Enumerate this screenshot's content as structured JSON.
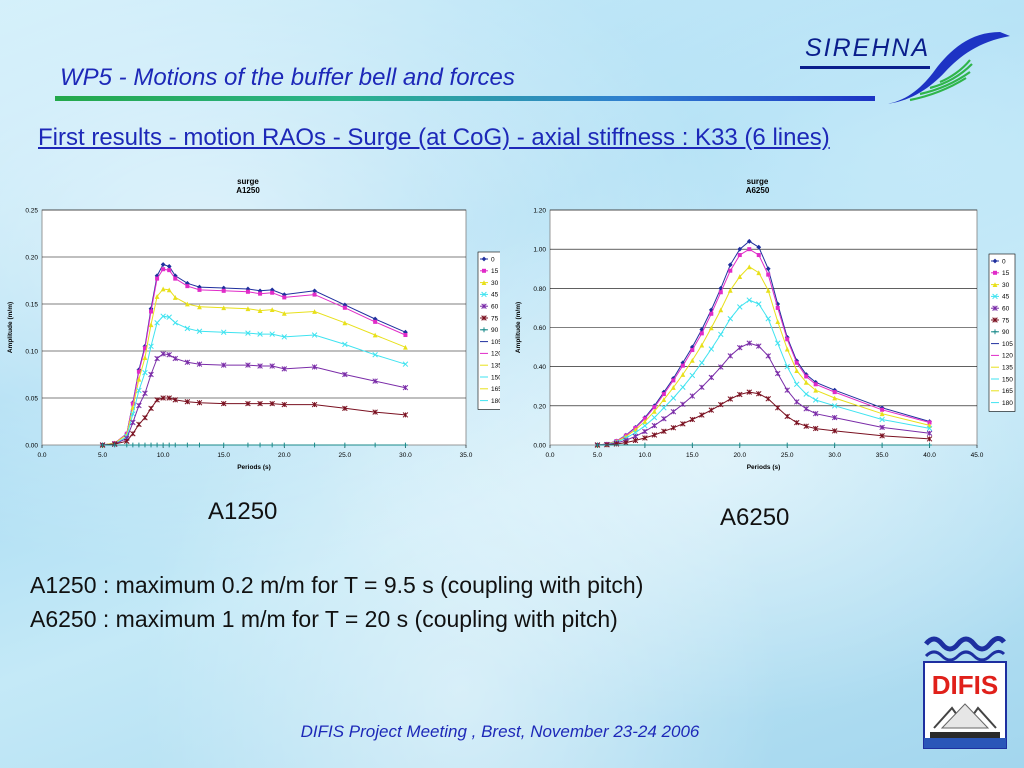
{
  "slide": {
    "title": "WP5 - Motions of the buffer bell and forces",
    "subtitle": "First results - motion RAOs - Surge (at CoG) - axial stiffness : K33 (6 lines)",
    "logo_text": "SIREHNA",
    "label_left": "A1250",
    "label_right": "A6250",
    "line1": "A1250 : maximum 0.2 m/m for T = 9.5 s (coupling with pitch)",
    "line2": "A6250 : maximum 1 m/m for T = 20 s (coupling with pitch)",
    "footer": "DIFIS Project Meeting , Brest, November 23-24 2006",
    "difis_logo_text": "DIFIS"
  },
  "chart_data": [
    {
      "type": "line",
      "title": "surge",
      "subtitle": "A1250",
      "xlabel": "Periods (s)",
      "ylabel": "Amplitude (m/m)",
      "xlim": [
        0,
        35
      ],
      "ylim": [
        0,
        0.25
      ],
      "xticks": [
        "0.0",
        "5.0",
        "10.0",
        "15.0",
        "20.0",
        "25.0",
        "30.0",
        "35.0"
      ],
      "yticks": [
        "0.00",
        "0.05",
        "0.10",
        "0.15",
        "0.20",
        "0.25"
      ],
      "grid": true,
      "legend_position": "right",
      "series": [
        {
          "name": "0",
          "color": "#1f2f9e",
          "x": [
            5,
            6,
            7,
            7.5,
            8,
            8.5,
            9,
            9.5,
            10,
            10.5,
            11,
            12,
            13,
            15,
            17,
            18,
            19,
            20,
            22.5,
            25,
            27.5,
            30
          ],
          "values": [
            0,
            0.002,
            0.012,
            0.045,
            0.08,
            0.105,
            0.145,
            0.18,
            0.192,
            0.19,
            0.18,
            0.172,
            0.168,
            0.167,
            0.166,
            0.164,
            0.165,
            0.16,
            0.164,
            0.149,
            0.134,
            0.12
          ]
        },
        {
          "name": "15",
          "color": "#e02bc8",
          "x": [
            5,
            6,
            7,
            7.5,
            8,
            8.5,
            9,
            9.5,
            10,
            10.5,
            11,
            12,
            13,
            15,
            17,
            18,
            19,
            20,
            22.5,
            25,
            27.5,
            30
          ],
          "values": [
            0,
            0.002,
            0.012,
            0.044,
            0.078,
            0.103,
            0.142,
            0.177,
            0.187,
            0.186,
            0.177,
            0.169,
            0.165,
            0.164,
            0.163,
            0.161,
            0.162,
            0.157,
            0.16,
            0.146,
            0.131,
            0.117
          ]
        },
        {
          "name": "30",
          "color": "#e8e01a",
          "x": [
            5,
            6,
            7,
            7.5,
            8,
            8.5,
            9,
            9.5,
            10,
            10.5,
            11,
            12,
            13,
            15,
            17,
            18,
            19,
            20,
            22.5,
            25,
            27.5,
            30
          ],
          "values": [
            0,
            0.002,
            0.011,
            0.04,
            0.07,
            0.093,
            0.128,
            0.158,
            0.166,
            0.165,
            0.157,
            0.15,
            0.147,
            0.146,
            0.145,
            0.143,
            0.144,
            0.14,
            0.142,
            0.13,
            0.117,
            0.104
          ]
        },
        {
          "name": "45",
          "color": "#3fe3f0",
          "x": [
            5,
            6,
            7,
            7.5,
            8,
            8.5,
            9,
            9.5,
            10,
            10.5,
            11,
            12,
            13,
            15,
            17,
            18,
            19,
            20,
            22.5,
            25,
            27.5,
            30
          ],
          "values": [
            0,
            0.001,
            0.009,
            0.033,
            0.058,
            0.077,
            0.105,
            0.13,
            0.137,
            0.136,
            0.13,
            0.124,
            0.121,
            0.12,
            0.119,
            0.118,
            0.118,
            0.115,
            0.117,
            0.107,
            0.096,
            0.086
          ]
        },
        {
          "name": "60",
          "color": "#7a2ca8",
          "x": [
            5,
            6,
            7,
            7.5,
            8,
            8.5,
            9,
            9.5,
            10,
            10.5,
            11,
            12,
            13,
            15,
            17,
            18,
            19,
            20,
            22.5,
            25,
            27.5,
            30
          ],
          "values": [
            0,
            0.001,
            0.007,
            0.024,
            0.042,
            0.055,
            0.075,
            0.092,
            0.097,
            0.096,
            0.092,
            0.088,
            0.086,
            0.085,
            0.085,
            0.084,
            0.084,
            0.081,
            0.083,
            0.075,
            0.068,
            0.061
          ]
        },
        {
          "name": "75",
          "color": "#7a1020",
          "x": [
            5,
            6,
            7,
            7.5,
            8,
            8.5,
            9,
            9.5,
            10,
            10.5,
            11,
            12,
            13,
            15,
            17,
            18,
            19,
            20,
            22.5,
            25,
            27.5,
            30
          ],
          "values": [
            0,
            0.001,
            0.004,
            0.012,
            0.022,
            0.029,
            0.039,
            0.048,
            0.05,
            0.05,
            0.048,
            0.046,
            0.045,
            0.044,
            0.044,
            0.044,
            0.044,
            0.043,
            0.043,
            0.039,
            0.035,
            0.032
          ]
        },
        {
          "name": "90",
          "color": "#1a8a8a",
          "x": [
            5,
            6,
            7,
            7.5,
            8,
            8.5,
            9,
            9.5,
            10,
            10.5,
            11,
            12,
            13,
            15,
            17,
            18,
            19,
            20,
            22.5,
            25,
            27.5,
            30
          ],
          "values": [
            0,
            0,
            0,
            0,
            0,
            0,
            0,
            0,
            0,
            0,
            0,
            0,
            0,
            0,
            0,
            0,
            0,
            0,
            0,
            0,
            0,
            0
          ]
        },
        {
          "name": "105",
          "color": "#1f2f9e",
          "x": [],
          "values": []
        },
        {
          "name": "120",
          "color": "#e02bc8",
          "x": [],
          "values": []
        },
        {
          "name": "135",
          "color": "#e8e01a",
          "x": [],
          "values": []
        },
        {
          "name": "150",
          "color": "#3fe3f0",
          "x": [],
          "values": []
        },
        {
          "name": "165",
          "color": "#e8e01a",
          "x": [],
          "values": []
        },
        {
          "name": "180",
          "color": "#3fe3f0",
          "x": [],
          "values": []
        }
      ]
    },
    {
      "type": "line",
      "title": "surge",
      "subtitle": "A6250",
      "xlabel": "Periods (s)",
      "ylabel": "Amplitude (m/m)",
      "xlim": [
        0,
        45
      ],
      "ylim": [
        0,
        1.2
      ],
      "xticks": [
        "0.0",
        "5.0",
        "10.0",
        "15.0",
        "20.0",
        "25.0",
        "30.0",
        "35.0",
        "40.0",
        "45.0"
      ],
      "yticks": [
        "0.00",
        "0.20",
        "0.40",
        "0.60",
        "0.80",
        "1.00",
        "1.20"
      ],
      "grid": true,
      "legend_position": "right",
      "series": [
        {
          "name": "0",
          "color": "#1f2f9e",
          "x": [
            5,
            6,
            7,
            8,
            9,
            10,
            11,
            12,
            13,
            14,
            15,
            16,
            17,
            18,
            19,
            20,
            21,
            22,
            23,
            24,
            25,
            26,
            27,
            28,
            30,
            35,
            40
          ],
          "values": [
            0,
            0.005,
            0.02,
            0.05,
            0.09,
            0.14,
            0.2,
            0.27,
            0.34,
            0.42,
            0.5,
            0.59,
            0.69,
            0.8,
            0.92,
            1.0,
            1.04,
            1.01,
            0.9,
            0.72,
            0.55,
            0.43,
            0.36,
            0.32,
            0.28,
            0.19,
            0.12
          ]
        },
        {
          "name": "15",
          "color": "#e02bc8",
          "x": [
            5,
            6,
            7,
            8,
            9,
            10,
            11,
            12,
            13,
            14,
            15,
            16,
            17,
            18,
            19,
            20,
            21,
            22,
            23,
            24,
            25,
            26,
            27,
            28,
            30,
            35,
            40
          ],
          "values": [
            0,
            0.005,
            0.02,
            0.048,
            0.087,
            0.135,
            0.193,
            0.26,
            0.33,
            0.405,
            0.485,
            0.57,
            0.67,
            0.78,
            0.89,
            0.97,
            1.0,
            0.97,
            0.87,
            0.7,
            0.54,
            0.42,
            0.35,
            0.31,
            0.27,
            0.18,
            0.115
          ]
        },
        {
          "name": "30",
          "color": "#e8e01a",
          "x": [
            5,
            6,
            7,
            8,
            9,
            10,
            11,
            12,
            13,
            14,
            15,
            16,
            17,
            18,
            19,
            20,
            21,
            22,
            23,
            24,
            25,
            26,
            27,
            28,
            30,
            35,
            40
          ],
          "values": [
            0,
            0.004,
            0.018,
            0.043,
            0.078,
            0.12,
            0.172,
            0.232,
            0.294,
            0.36,
            0.432,
            0.51,
            0.598,
            0.69,
            0.79,
            0.86,
            0.91,
            0.88,
            0.79,
            0.63,
            0.49,
            0.38,
            0.32,
            0.28,
            0.24,
            0.16,
            0.1
          ]
        },
        {
          "name": "45",
          "color": "#3fe3f0",
          "x": [
            5,
            6,
            7,
            8,
            9,
            10,
            11,
            12,
            13,
            14,
            15,
            16,
            17,
            18,
            19,
            20,
            21,
            22,
            23,
            24,
            25,
            26,
            27,
            28,
            30,
            35,
            40
          ],
          "values": [
            0,
            0.003,
            0.014,
            0.035,
            0.063,
            0.098,
            0.14,
            0.19,
            0.24,
            0.295,
            0.355,
            0.42,
            0.49,
            0.565,
            0.645,
            0.705,
            0.74,
            0.72,
            0.645,
            0.52,
            0.4,
            0.31,
            0.26,
            0.23,
            0.2,
            0.13,
            0.085
          ]
        },
        {
          "name": "60",
          "color": "#7a2ca8",
          "x": [
            5,
            6,
            7,
            8,
            9,
            10,
            11,
            12,
            13,
            14,
            15,
            16,
            17,
            18,
            19,
            20,
            21,
            22,
            23,
            24,
            25,
            26,
            27,
            28,
            30,
            35,
            40
          ],
          "values": [
            0,
            0.002,
            0.01,
            0.024,
            0.044,
            0.069,
            0.099,
            0.134,
            0.17,
            0.208,
            0.25,
            0.295,
            0.345,
            0.398,
            0.455,
            0.497,
            0.52,
            0.505,
            0.455,
            0.365,
            0.28,
            0.22,
            0.185,
            0.16,
            0.14,
            0.09,
            0.06
          ]
        },
        {
          "name": "75",
          "color": "#7a1020",
          "x": [
            5,
            6,
            7,
            8,
            9,
            10,
            11,
            12,
            13,
            14,
            15,
            16,
            17,
            18,
            19,
            20,
            21,
            22,
            23,
            24,
            25,
            26,
            27,
            28,
            30,
            35,
            40
          ],
          "values": [
            0,
            0.001,
            0.005,
            0.012,
            0.023,
            0.036,
            0.051,
            0.07,
            0.088,
            0.108,
            0.13,
            0.153,
            0.178,
            0.206,
            0.235,
            0.258,
            0.27,
            0.262,
            0.236,
            0.19,
            0.146,
            0.114,
            0.096,
            0.084,
            0.072,
            0.047,
            0.031
          ]
        },
        {
          "name": "90",
          "color": "#1a8a8a",
          "x": [
            5,
            10,
            15,
            20,
            25,
            30,
            35,
            40
          ],
          "values": [
            0,
            0,
            0,
            0,
            0,
            0,
            0,
            0
          ]
        },
        {
          "name": "105",
          "color": "#1f2f9e",
          "x": [],
          "values": []
        },
        {
          "name": "120",
          "color": "#e02bc8",
          "x": [],
          "values": []
        },
        {
          "name": "135",
          "color": "#e8e01a",
          "x": [],
          "values": []
        },
        {
          "name": "150",
          "color": "#3fe3f0",
          "x": [],
          "values": []
        },
        {
          "name": "165",
          "color": "#e8e01a",
          "x": [],
          "values": []
        },
        {
          "name": "180",
          "color": "#3fe3f0",
          "x": [],
          "values": []
        }
      ]
    }
  ]
}
